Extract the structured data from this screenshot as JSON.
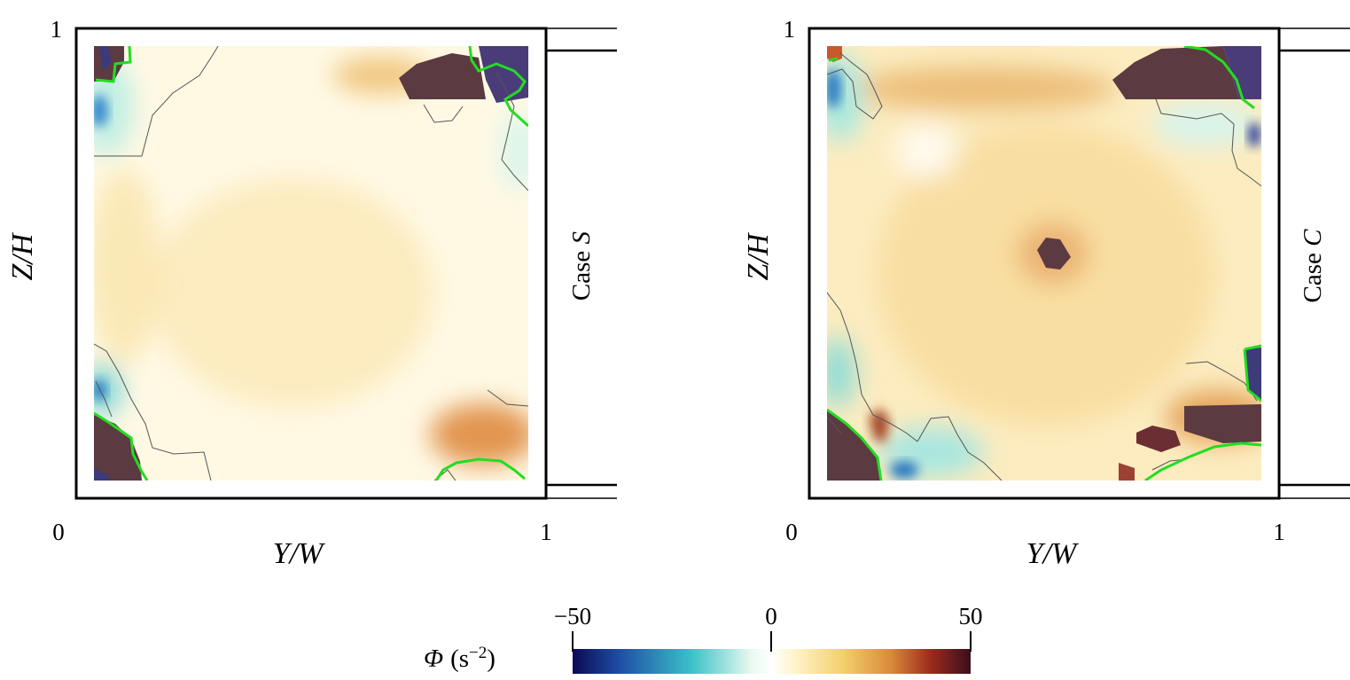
{
  "panels": [
    {
      "case_prefix": "Case ",
      "case_symbol": "S",
      "xlabel": "Y/W",
      "ylabel": "Z/H",
      "x_ticks": [
        "0",
        "1"
      ],
      "y_ticks": [
        "1"
      ]
    },
    {
      "case_prefix": "Case ",
      "case_symbol": "C",
      "xlabel": "Y/W",
      "ylabel": "Z/H",
      "x_ticks": [
        "0",
        "1"
      ],
      "y_ticks": [
        "1"
      ]
    }
  ],
  "colorbar": {
    "symbol": "Φ",
    "unit_open": "(s",
    "unit_exp": "−2",
    "unit_close": ")",
    "ticks": [
      "−50",
      "0",
      "50"
    ]
  },
  "chart_data": {
    "type": "heatmap",
    "variable": "Φ",
    "units": "s−2",
    "xlabel": "Y/W",
    "ylabel": "Z/H",
    "xlim": [
      0,
      1
    ],
    "ylim": [
      0,
      1
    ],
    "colorbar": {
      "range": [
        -50,
        50
      ],
      "ticks": [
        -50,
        0,
        50
      ],
      "colors": [
        "#0a0a55",
        "#1f4fa6",
        "#3cc2c8",
        "#eafaf0",
        "#ffffff",
        "#fff3c8",
        "#f4cf6c",
        "#d98a3a",
        "#9c2a1c",
        "#3a0f1c"
      ]
    },
    "contours": {
      "zero_line_color": "#555555",
      "highlight_color": "#22dd22"
    },
    "panels": [
      {
        "case": "S"
      },
      {
        "case": "C"
      }
    ]
  }
}
